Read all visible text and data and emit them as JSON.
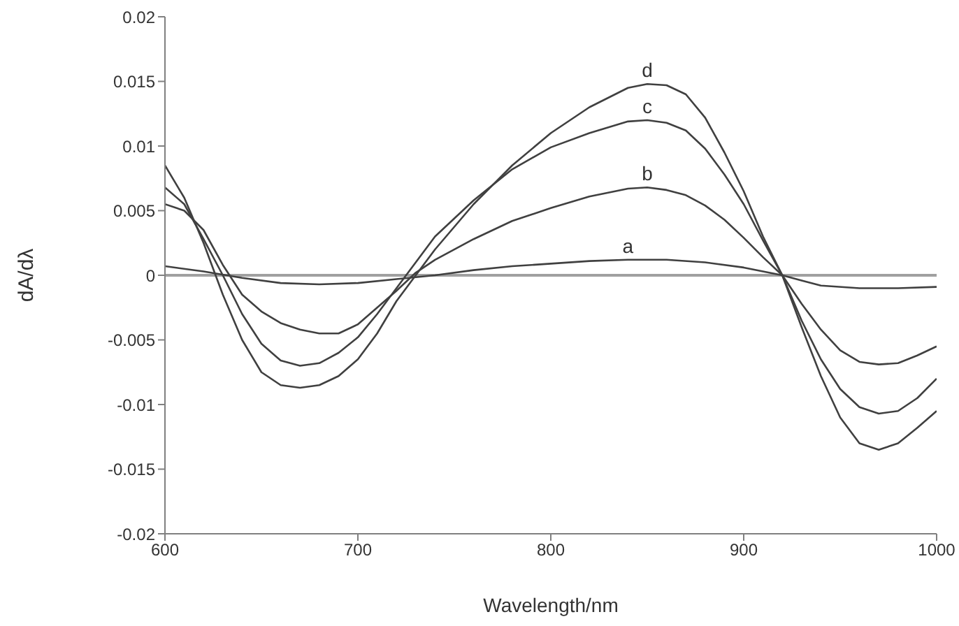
{
  "chart_data": {
    "type": "line",
    "xlabel": "Wavelength/nm",
    "ylabel": "dA/dλ",
    "xlim": [
      600,
      1000
    ],
    "xticks": [
      600,
      700,
      800,
      900,
      1000
    ],
    "ylim": [
      -0.02,
      0.02
    ],
    "yticks": [
      -0.02,
      -0.015,
      -0.01,
      -0.005,
      0,
      0.005,
      0.01,
      0.015,
      0.02
    ],
    "marker": "none",
    "line_style": "solid",
    "ref_lines": [
      {
        "axis": "y",
        "value": 0,
        "color": "#a0a0a0"
      }
    ],
    "series": [
      {
        "name": "a",
        "color": "#404040",
        "x": [
          600,
          620,
          640,
          660,
          680,
          700,
          720,
          740,
          760,
          780,
          800,
          820,
          840,
          860,
          880,
          900,
          920,
          930,
          940,
          960,
          980,
          1000
        ],
        "values": [
          0.0007,
          0.0003,
          -0.0002,
          -0.0006,
          -0.0007,
          -0.0006,
          -0.0003,
          0,
          0.0004,
          0.0007,
          0.0009,
          0.0011,
          0.0012,
          0.0012,
          0.001,
          0.0006,
          0,
          -0.0004,
          -0.0008,
          -0.001,
          -0.001,
          -0.0009
        ]
      },
      {
        "name": "b",
        "color": "#404040",
        "x": [
          600,
          610,
          620,
          630,
          640,
          650,
          660,
          670,
          680,
          690,
          700,
          710,
          720,
          730,
          740,
          760,
          780,
          800,
          820,
          840,
          850,
          860,
          870,
          880,
          890,
          900,
          910,
          920,
          930,
          940,
          950,
          960,
          970,
          980,
          990,
          1000
        ],
        "values": [
          0.0055,
          0.005,
          0.0035,
          0.0008,
          -0.0015,
          -0.0028,
          -0.0037,
          -0.0042,
          -0.0045,
          -0.0045,
          -0.0038,
          -0.0025,
          -0.0012,
          0.0002,
          0.0012,
          0.0028,
          0.0042,
          0.0052,
          0.0061,
          0.0067,
          0.0068,
          0.0066,
          0.0062,
          0.0054,
          0.0043,
          0.0029,
          0.0014,
          0,
          -0.0022,
          -0.0042,
          -0.0058,
          -0.0067,
          -0.0069,
          -0.0068,
          -0.0062,
          -0.0055
        ]
      },
      {
        "name": "c",
        "color": "#404040",
        "x": [
          600,
          610,
          620,
          630,
          640,
          650,
          660,
          670,
          680,
          690,
          700,
          710,
          720,
          730,
          740,
          760,
          780,
          800,
          820,
          840,
          850,
          860,
          870,
          880,
          890,
          900,
          910,
          920,
          930,
          940,
          950,
          960,
          970,
          980,
          990,
          1000
        ],
        "values": [
          0.0068,
          0.0055,
          0.0028,
          0,
          -0.003,
          -0.0053,
          -0.0066,
          -0.007,
          -0.0068,
          -0.006,
          -0.0048,
          -0.003,
          -0.001,
          0.001,
          0.003,
          0.0058,
          0.0082,
          0.0099,
          0.011,
          0.0119,
          0.012,
          0.0118,
          0.0112,
          0.0098,
          0.0078,
          0.0055,
          0.0027,
          0,
          -0.0035,
          -0.0065,
          -0.0088,
          -0.0102,
          -0.0107,
          -0.0105,
          -0.0095,
          -0.008
        ]
      },
      {
        "name": "d",
        "color": "#404040",
        "x": [
          600,
          610,
          620,
          630,
          640,
          650,
          660,
          670,
          680,
          690,
          700,
          710,
          720,
          730,
          740,
          760,
          780,
          800,
          820,
          840,
          850,
          860,
          870,
          880,
          890,
          900,
          910,
          920,
          930,
          940,
          950,
          960,
          970,
          980,
          990,
          1000
        ],
        "values": [
          0.0085,
          0.006,
          0.0025,
          -0.0015,
          -0.005,
          -0.0075,
          -0.0085,
          -0.0087,
          -0.0085,
          -0.0078,
          -0.0065,
          -0.0045,
          -0.002,
          0,
          0.002,
          0.0055,
          0.0085,
          0.011,
          0.013,
          0.0145,
          0.0148,
          0.0147,
          0.014,
          0.0122,
          0.0095,
          0.0065,
          0.003,
          0,
          -0.004,
          -0.0078,
          -0.011,
          -0.013,
          -0.0135,
          -0.013,
          -0.0118,
          -0.0105
        ]
      }
    ]
  }
}
